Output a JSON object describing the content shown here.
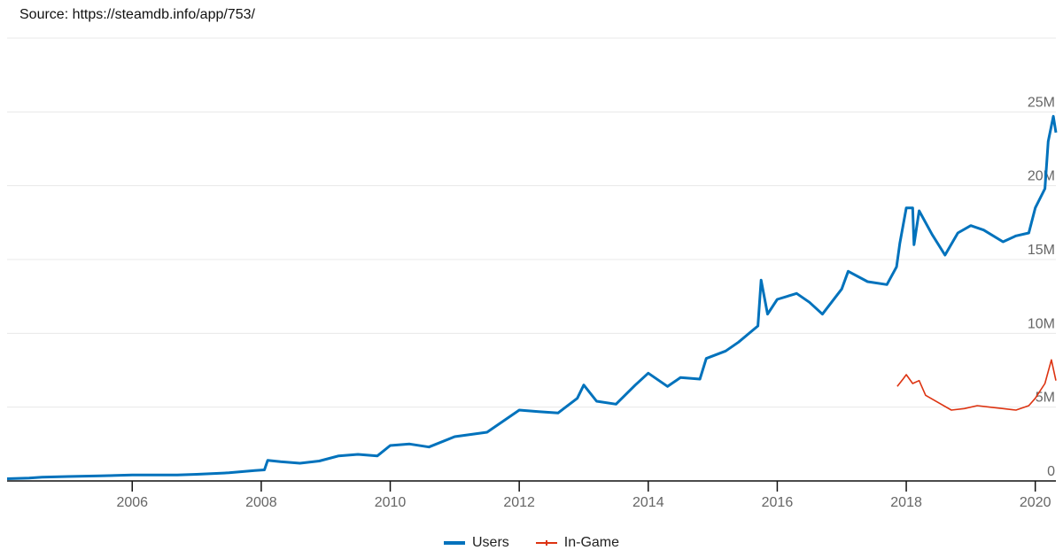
{
  "chart_data": {
    "type": "line",
    "title": "",
    "source": "Source: https://steamdb.info/app/753/",
    "xlabel": "",
    "ylabel": "",
    "xlim": [
      2004.06,
      2020.32
    ],
    "ylim": [
      0,
      30
    ],
    "y_ticks": [
      {
        "value": 0,
        "label": "0"
      },
      {
        "value": 5,
        "label": "5M"
      },
      {
        "value": 10,
        "label": "10M"
      },
      {
        "value": 15,
        "label": "15M"
      },
      {
        "value": 20,
        "label": "20M"
      },
      {
        "value": 25,
        "label": "25M"
      },
      {
        "value": 30,
        "label": ""
      }
    ],
    "x_ticks": [
      {
        "value": 2006,
        "label": "2006"
      },
      {
        "value": 2008,
        "label": "2008"
      },
      {
        "value": 2010,
        "label": "2010"
      },
      {
        "value": 2012,
        "label": "2012"
      },
      {
        "value": 2014,
        "label": "2014"
      },
      {
        "value": 2016,
        "label": "2016"
      },
      {
        "value": 2018,
        "label": "2018"
      },
      {
        "value": 2020,
        "label": "2020"
      }
    ],
    "grid": true,
    "legend_position": "bottom",
    "series": [
      {
        "name": "Users",
        "color": "#0072bc",
        "unit": "millions",
        "points": [
          [
            2004.06,
            0.15
          ],
          [
            2004.4,
            0.2
          ],
          [
            2004.6,
            0.25
          ],
          [
            2005.0,
            0.3
          ],
          [
            2005.5,
            0.35
          ],
          [
            2006.0,
            0.4
          ],
          [
            2006.7,
            0.4
          ],
          [
            2007.0,
            0.45
          ],
          [
            2007.5,
            0.55
          ],
          [
            2007.9,
            0.7
          ],
          [
            2008.05,
            0.75
          ],
          [
            2008.1,
            1.4
          ],
          [
            2008.3,
            1.3
          ],
          [
            2008.6,
            1.2
          ],
          [
            2008.9,
            1.35
          ],
          [
            2009.2,
            1.7
          ],
          [
            2009.5,
            1.8
          ],
          [
            2009.8,
            1.7
          ],
          [
            2010.0,
            2.4
          ],
          [
            2010.3,
            2.5
          ],
          [
            2010.6,
            2.3
          ],
          [
            2011.0,
            3.0
          ],
          [
            2011.5,
            3.3
          ],
          [
            2012.0,
            4.8
          ],
          [
            2012.3,
            4.7
          ],
          [
            2012.6,
            4.6
          ],
          [
            2012.9,
            5.6
          ],
          [
            2013.0,
            6.5
          ],
          [
            2013.2,
            5.4
          ],
          [
            2013.5,
            5.2
          ],
          [
            2013.8,
            6.5
          ],
          [
            2014.0,
            7.3
          ],
          [
            2014.3,
            6.4
          ],
          [
            2014.5,
            7.0
          ],
          [
            2014.8,
            6.9
          ],
          [
            2014.9,
            8.3
          ],
          [
            2015.2,
            8.8
          ],
          [
            2015.4,
            9.4
          ],
          [
            2015.7,
            10.5
          ],
          [
            2015.75,
            13.6
          ],
          [
            2015.85,
            11.3
          ],
          [
            2016.0,
            12.3
          ],
          [
            2016.3,
            12.7
          ],
          [
            2016.5,
            12.1
          ],
          [
            2016.7,
            11.3
          ],
          [
            2017.0,
            13.0
          ],
          [
            2017.1,
            14.2
          ],
          [
            2017.4,
            13.5
          ],
          [
            2017.7,
            13.3
          ],
          [
            2017.85,
            14.5
          ],
          [
            2017.9,
            16.1
          ],
          [
            2018.0,
            18.5
          ],
          [
            2018.1,
            18.5
          ],
          [
            2018.12,
            16.0
          ],
          [
            2018.2,
            18.3
          ],
          [
            2018.4,
            16.7
          ],
          [
            2018.6,
            15.3
          ],
          [
            2018.8,
            16.8
          ],
          [
            2019.0,
            17.3
          ],
          [
            2019.2,
            17.0
          ],
          [
            2019.5,
            16.2
          ],
          [
            2019.7,
            16.6
          ],
          [
            2019.9,
            16.8
          ],
          [
            2020.0,
            18.5
          ],
          [
            2020.15,
            19.8
          ],
          [
            2020.2,
            23.0
          ],
          [
            2020.28,
            24.7
          ],
          [
            2020.32,
            23.6
          ]
        ]
      },
      {
        "name": "In-Game",
        "color": "#dd3311",
        "unit": "millions",
        "points": [
          [
            2017.86,
            6.4
          ],
          [
            2017.95,
            6.9
          ],
          [
            2018.0,
            7.2
          ],
          [
            2018.1,
            6.6
          ],
          [
            2018.2,
            6.8
          ],
          [
            2018.3,
            5.8
          ],
          [
            2018.5,
            5.3
          ],
          [
            2018.7,
            4.8
          ],
          [
            2018.9,
            4.9
          ],
          [
            2019.1,
            5.1
          ],
          [
            2019.3,
            5.0
          ],
          [
            2019.5,
            4.9
          ],
          [
            2019.7,
            4.8
          ],
          [
            2019.9,
            5.1
          ],
          [
            2020.0,
            5.6
          ],
          [
            2020.15,
            6.6
          ],
          [
            2020.25,
            8.2
          ],
          [
            2020.32,
            6.8
          ]
        ]
      }
    ]
  },
  "legend": {
    "users_label": "Users",
    "ingame_label": "In-Game"
  }
}
